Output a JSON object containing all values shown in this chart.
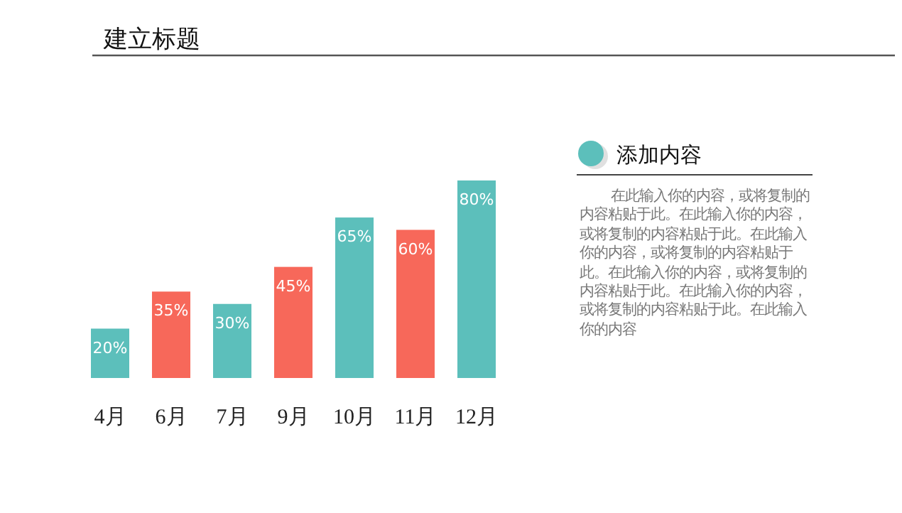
{
  "chart_data": [
    {
      "type": "bar",
      "title": "建立标题",
      "categories": [
        "4月",
        "6月",
        "7月",
        "9月",
        "10月",
        "11月",
        "12月"
      ],
      "values": [
        20,
        35,
        30,
        45,
        65,
        60,
        80
      ],
      "colors": [
        "#5cbfbb",
        "#f7685a",
        "#5cbfbb",
        "#f7685a",
        "#5cbfbb",
        "#f7685a",
        "#5cbfbb"
      ],
      "value_labels": [
        "20%",
        "35%",
        "30%",
        "45%",
        "65%",
        "60%",
        "80%"
      ]
    },
    {
      "type": "other",
      "title": "添加内容",
      "annotations": [
        "在此输入你的内容，或将复制的内容粘贴于此。在此输入你的内容，或将复制的内容粘贴于此。在此输入你的内容，或将复制的内容粘贴于此。在此输入你的内容，或将复制的内容粘贴于此。在此输入你的内容，或将复制的内容粘贴于此。在此输入你的内容"
      ]
    }
  ]
}
